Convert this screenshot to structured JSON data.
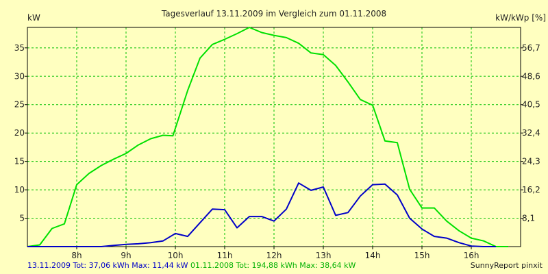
{
  "chart_data": {
    "type": "line",
    "title": "Tagesverlauf 13.11.2009 im Vergleich zum 01.11.2008",
    "ylabel_left": "kW",
    "ylabel_right": "kW/kWp [%]",
    "x_ticks": [
      "8h",
      "9h",
      "10h",
      "11h",
      "12h",
      "13h",
      "14h",
      "15h",
      "16h"
    ],
    "x_tick_hours": [
      8,
      9,
      10,
      11,
      12,
      13,
      14,
      15,
      16
    ],
    "xlim": [
      7.0,
      17.0
    ],
    "y_ticks_left": [
      5,
      10,
      15,
      20,
      25,
      30,
      35
    ],
    "ylim": [
      0,
      38.6
    ],
    "y_ticks_right": [
      "8,1",
      "16,2",
      "24,3",
      "32,4",
      "40,5",
      "48,6",
      "56,7"
    ],
    "grid": true,
    "colors": {
      "background": "#ffffc0",
      "grid": "#00c000",
      "frame": "#000000"
    },
    "series": [
      {
        "name": "01.11.2008",
        "color": "#00e000",
        "x": [
          7.0,
          7.25,
          7.5,
          7.75,
          8.0,
          8.25,
          8.5,
          8.75,
          9.0,
          9.25,
          9.5,
          9.75,
          9.95,
          10.25,
          10.5,
          10.75,
          11.0,
          11.25,
          11.5,
          11.75,
          12.0,
          12.25,
          12.5,
          12.75,
          13.0,
          13.25,
          13.5,
          13.75,
          14.0,
          14.25,
          14.5,
          14.75,
          15.0,
          15.25,
          15.5,
          15.75,
          16.0,
          16.25,
          16.5,
          16.75
        ],
        "y": [
          0.0,
          0.3,
          3.2,
          4.0,
          10.9,
          12.9,
          14.3,
          15.4,
          16.4,
          17.9,
          19.0,
          19.6,
          19.5,
          27.5,
          33.2,
          35.6,
          36.5,
          37.5,
          38.6,
          37.7,
          37.2,
          36.8,
          35.8,
          34.1,
          33.8,
          31.9,
          29.0,
          25.9,
          24.9,
          18.6,
          18.3,
          10.1,
          6.8,
          6.8,
          4.5,
          2.8,
          1.5,
          1.0,
          0.0,
          0.0
        ]
      },
      {
        "name": "13.11.2009",
        "color": "#0000c8",
        "x": [
          7.0,
          7.5,
          8.0,
          8.5,
          8.75,
          9.0,
          9.25,
          9.5,
          9.75,
          10.0,
          10.25,
          10.5,
          10.75,
          11.0,
          11.25,
          11.5,
          11.75,
          12.0,
          12.25,
          12.5,
          12.75,
          13.0,
          13.25,
          13.5,
          13.75,
          14.0,
          14.25,
          14.5,
          14.75,
          15.0,
          15.25,
          15.5,
          15.75,
          16.0,
          16.25,
          16.5
        ],
        "y": [
          0.0,
          0.0,
          0.0,
          0.0,
          0.2,
          0.4,
          0.5,
          0.7,
          1.0,
          2.3,
          1.8,
          4.2,
          6.6,
          6.5,
          3.3,
          5.3,
          5.3,
          4.5,
          6.6,
          11.2,
          9.9,
          10.5,
          5.5,
          6.0,
          8.9,
          10.9,
          11.0,
          9.1,
          5.0,
          3.1,
          1.8,
          1.5,
          0.7,
          0.1,
          0.0,
          0.0
        ]
      }
    ],
    "footer": {
      "blue_text": "13.11.2009 Tot: 37,06 kWh Max: 11,44 kW",
      "green_text": " 01.11.2008 Tot: 194,88 kWh Max: 38,64 kW",
      "credit": "SunnyReport pinxit"
    }
  }
}
